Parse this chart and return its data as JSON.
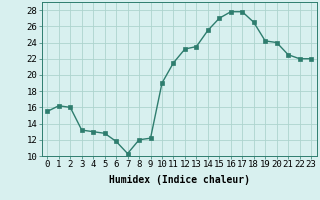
{
  "x": [
    0,
    1,
    2,
    3,
    4,
    5,
    6,
    7,
    8,
    9,
    10,
    11,
    12,
    13,
    14,
    15,
    16,
    17,
    18,
    19,
    20,
    21,
    22,
    23
  ],
  "y": [
    15.5,
    16.2,
    16.0,
    13.2,
    13.0,
    12.8,
    11.8,
    10.3,
    12.0,
    12.2,
    19.0,
    21.5,
    23.2,
    23.5,
    25.5,
    27.0,
    27.8,
    27.8,
    26.5,
    24.2,
    24.0,
    22.5,
    22.0,
    22.0
  ],
  "line_color": "#2e7d6e",
  "marker": "s",
  "marker_size": 2.5,
  "bg_color": "#d8f0ef",
  "grid_color": "#aed4ce",
  "xlabel": "Humidex (Indice chaleur)",
  "xlim": [
    -0.5,
    23.5
  ],
  "ylim": [
    10,
    29
  ],
  "yticks": [
    10,
    12,
    14,
    16,
    18,
    20,
    22,
    24,
    26,
    28
  ],
  "xticks": [
    0,
    1,
    2,
    3,
    4,
    5,
    6,
    7,
    8,
    9,
    10,
    11,
    12,
    13,
    14,
    15,
    16,
    17,
    18,
    19,
    20,
    21,
    22,
    23
  ],
  "xtick_labels": [
    "0",
    "1",
    "2",
    "3",
    "4",
    "5",
    "6",
    "7",
    "8",
    "9",
    "10",
    "11",
    "12",
    "13",
    "14",
    "15",
    "16",
    "17",
    "18",
    "19",
    "20",
    "21",
    "22",
    "23"
  ],
  "xlabel_fontsize": 7,
  "tick_fontsize": 6.5
}
